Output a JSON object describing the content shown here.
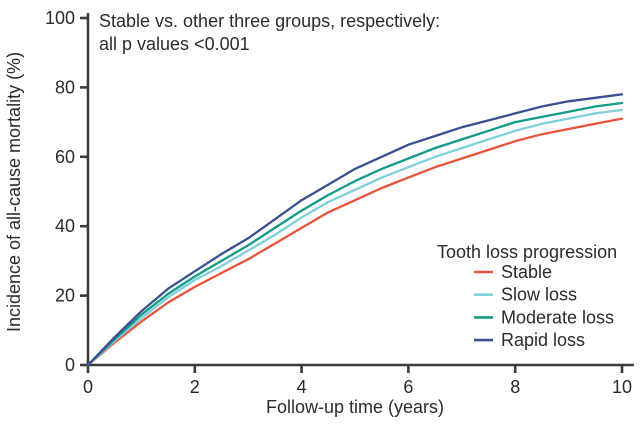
{
  "figure": {
    "annotation_line1": "Stable vs. other three groups, respectively:",
    "annotation_line2": "all p values <0.001"
  },
  "chart_data": {
    "type": "line",
    "title": "",
    "xlabel": "Follow-up time (years)",
    "ylabel": "Incidence of all-cause mortality (%)",
    "xlim": [
      0,
      10
    ],
    "ylim": [
      0,
      100
    ],
    "x_ticks": [
      0,
      2,
      4,
      6,
      8,
      10
    ],
    "y_ticks": [
      0,
      20,
      40,
      60,
      80,
      100
    ],
    "grid": false,
    "legend_title": "Tooth loss progression",
    "legend_position": "inside lower right",
    "annotation": "Stable vs. other three groups, respectively: all p values <0.001",
    "x": [
      0,
      0.5,
      1,
      1.5,
      2,
      2.5,
      3,
      3.5,
      4,
      4.5,
      5,
      5.5,
      6,
      6.5,
      7,
      7.5,
      8,
      8.5,
      9,
      9.5,
      10
    ],
    "series": [
      {
        "name": "Stable",
        "color": "#e8533c",
        "values": [
          0,
          6.5,
          12.5,
          18,
          22.5,
          26.5,
          30.5,
          35,
          39.5,
          44,
          47.5,
          51,
          54,
          57,
          59.5,
          62,
          64.5,
          66.5,
          68,
          69.5,
          71
        ]
      },
      {
        "name": "Slow loss",
        "color": "#7ecfdb",
        "values": [
          0,
          7,
          13.5,
          19.5,
          24.5,
          28.5,
          33,
          37.5,
          42.5,
          47,
          50.5,
          54,
          57,
          60,
          62.5,
          65,
          67.5,
          69.5,
          71,
          72.5,
          73.5
        ]
      },
      {
        "name": "Moderate loss",
        "color": "#129b86",
        "values": [
          0,
          7.5,
          14.5,
          20.5,
          25.5,
          30,
          34.5,
          39.5,
          44.5,
          49,
          53,
          56.5,
          59.5,
          62.5,
          65,
          67.5,
          70,
          71.5,
          73,
          74.5,
          75.5
        ]
      },
      {
        "name": "Rapid loss",
        "color": "#3a5191",
        "values": [
          0,
          8,
          15.5,
          22,
          27,
          32,
          36.5,
          42,
          47.5,
          52,
          56.5,
          60,
          63.5,
          66,
          68.5,
          70.5,
          72.5,
          74.5,
          76,
          77,
          78
        ]
      }
    ]
  }
}
